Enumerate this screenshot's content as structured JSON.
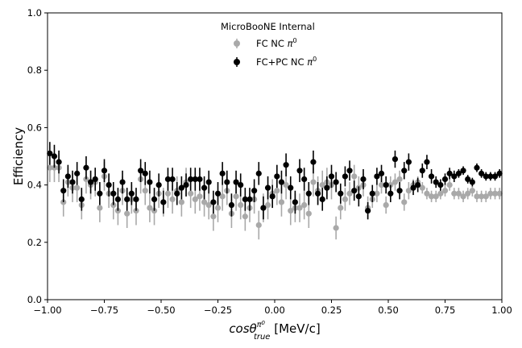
{
  "chart_data": {
    "type": "scatter",
    "title": "",
    "annotation": "MicroBooNE Internal",
    "xlabel": "cosθ^{π0}_{true} [MeV/c]",
    "xlabel_parts": {
      "main": "cosθ",
      "sup": "π",
      "sup2": "0",
      "sub": "true",
      "unit": " [MeV/c]"
    },
    "ylabel": "Efficiency",
    "xlim": [
      -1.0,
      1.0
    ],
    "ylim": [
      0.0,
      1.0
    ],
    "xticks": [
      "−1.00",
      "−0.75",
      "−0.50",
      "−0.25",
      "0.00",
      "0.25",
      "0.50",
      "0.75",
      "1.00"
    ],
    "yticks": [
      "0.0",
      "0.2",
      "0.4",
      "0.6",
      "0.8",
      "1.0"
    ],
    "legend_position": "top-center",
    "grid": false,
    "series": [
      {
        "name": "FC NC π^0",
        "label_main": "FC NC ",
        "label_sym": "π",
        "label_sup": "0",
        "color": "#a9a9a9",
        "x": [
          -0.99,
          -0.97,
          -0.95,
          -0.93,
          -0.91,
          -0.89,
          -0.87,
          -0.85,
          -0.83,
          -0.81,
          -0.79,
          -0.77,
          -0.75,
          -0.73,
          -0.71,
          -0.69,
          -0.67,
          -0.65,
          -0.63,
          -0.61,
          -0.59,
          -0.57,
          -0.55,
          -0.53,
          -0.51,
          -0.49,
          -0.47,
          -0.45,
          -0.43,
          -0.41,
          -0.39,
          -0.37,
          -0.35,
          -0.33,
          -0.31,
          -0.29,
          -0.27,
          -0.25,
          -0.23,
          -0.21,
          -0.19,
          -0.17,
          -0.15,
          -0.13,
          -0.11,
          -0.09,
          -0.07,
          -0.05,
          -0.03,
          -0.01,
          0.01,
          0.03,
          0.05,
          0.07,
          0.09,
          0.11,
          0.13,
          0.15,
          0.17,
          0.19,
          0.21,
          0.23,
          0.25,
          0.27,
          0.29,
          0.31,
          0.33,
          0.35,
          0.37,
          0.39,
          0.41,
          0.43,
          0.45,
          0.47,
          0.49,
          0.51,
          0.53,
          0.55,
          0.57,
          0.59,
          0.61,
          0.63,
          0.65,
          0.67,
          0.69,
          0.71,
          0.73,
          0.75,
          0.77,
          0.79,
          0.81,
          0.83,
          0.85,
          0.87,
          0.89,
          0.91,
          0.93,
          0.95,
          0.97,
          0.99
        ],
        "y": [
          0.46,
          0.46,
          0.46,
          0.34,
          0.41,
          0.39,
          0.39,
          0.33,
          0.42,
          0.4,
          0.41,
          0.32,
          0.43,
          0.37,
          0.33,
          0.31,
          0.38,
          0.3,
          0.35,
          0.31,
          0.42,
          0.38,
          0.32,
          0.31,
          0.37,
          0.34,
          0.37,
          0.35,
          0.38,
          0.34,
          0.41,
          0.37,
          0.35,
          0.36,
          0.34,
          0.33,
          0.29,
          0.32,
          0.36,
          0.38,
          0.3,
          0.36,
          0.33,
          0.29,
          0.32,
          0.35,
          0.26,
          0.32,
          0.33,
          0.37,
          0.38,
          0.34,
          0.4,
          0.31,
          0.32,
          0.32,
          0.33,
          0.3,
          0.41,
          0.38,
          0.4,
          0.41,
          0.4,
          0.25,
          0.32,
          0.35,
          0.37,
          0.43,
          0.39,
          0.4,
          0.32,
          0.35,
          0.37,
          0.4,
          0.33,
          0.4,
          0.41,
          0.42,
          0.34,
          0.38,
          0.4,
          0.41,
          0.39,
          0.37,
          0.36,
          0.36,
          0.37,
          0.38,
          0.4,
          0.37,
          0.37,
          0.36,
          0.37,
          0.38,
          0.36,
          0.36,
          0.36,
          0.37,
          0.37,
          0.37
        ],
        "yerr": [
          0.05,
          0.05,
          0.05,
          0.05,
          0.05,
          0.05,
          0.05,
          0.05,
          0.05,
          0.05,
          0.05,
          0.05,
          0.05,
          0.05,
          0.05,
          0.05,
          0.05,
          0.05,
          0.05,
          0.05,
          0.05,
          0.05,
          0.05,
          0.05,
          0.05,
          0.05,
          0.05,
          0.05,
          0.05,
          0.05,
          0.05,
          0.05,
          0.05,
          0.05,
          0.05,
          0.05,
          0.05,
          0.05,
          0.05,
          0.05,
          0.05,
          0.05,
          0.05,
          0.05,
          0.05,
          0.05,
          0.05,
          0.05,
          0.05,
          0.05,
          0.05,
          0.05,
          0.05,
          0.05,
          0.05,
          0.05,
          0.05,
          0.05,
          0.05,
          0.05,
          0.05,
          0.05,
          0.05,
          0.04,
          0.04,
          0.04,
          0.04,
          0.04,
          0.04,
          0.04,
          0.04,
          0.03,
          0.03,
          0.03,
          0.03,
          0.03,
          0.03,
          0.03,
          0.03,
          0.03,
          0.02,
          0.02,
          0.02,
          0.02,
          0.02,
          0.02,
          0.02,
          0.02,
          0.02,
          0.02,
          0.02,
          0.02,
          0.02,
          0.02,
          0.02,
          0.02,
          0.02,
          0.02,
          0.02,
          0.02
        ]
      },
      {
        "name": "FC+PC NC π^0",
        "label_main": "FC+PC NC ",
        "label_sym": "π",
        "label_sup": "0",
        "color": "#000000",
        "x": [
          -0.99,
          -0.97,
          -0.95,
          -0.93,
          -0.91,
          -0.89,
          -0.87,
          -0.85,
          -0.83,
          -0.81,
          -0.79,
          -0.77,
          -0.75,
          -0.73,
          -0.71,
          -0.69,
          -0.67,
          -0.65,
          -0.63,
          -0.61,
          -0.59,
          -0.57,
          -0.55,
          -0.53,
          -0.51,
          -0.49,
          -0.47,
          -0.45,
          -0.43,
          -0.41,
          -0.39,
          -0.37,
          -0.35,
          -0.33,
          -0.31,
          -0.29,
          -0.27,
          -0.25,
          -0.23,
          -0.21,
          -0.19,
          -0.17,
          -0.15,
          -0.13,
          -0.11,
          -0.09,
          -0.07,
          -0.05,
          -0.03,
          -0.01,
          0.01,
          0.03,
          0.05,
          0.07,
          0.09,
          0.11,
          0.13,
          0.15,
          0.17,
          0.19,
          0.21,
          0.23,
          0.25,
          0.27,
          0.29,
          0.31,
          0.33,
          0.35,
          0.37,
          0.39,
          0.41,
          0.43,
          0.45,
          0.47,
          0.49,
          0.51,
          0.53,
          0.55,
          0.57,
          0.59,
          0.61,
          0.63,
          0.65,
          0.67,
          0.69,
          0.71,
          0.73,
          0.75,
          0.77,
          0.79,
          0.81,
          0.83,
          0.85,
          0.87,
          0.89,
          0.91,
          0.93,
          0.95,
          0.97,
          0.99
        ],
        "y": [
          0.51,
          0.5,
          0.48,
          0.38,
          0.43,
          0.41,
          0.44,
          0.35,
          0.46,
          0.41,
          0.42,
          0.37,
          0.45,
          0.4,
          0.37,
          0.35,
          0.41,
          0.35,
          0.37,
          0.35,
          0.45,
          0.44,
          0.41,
          0.35,
          0.4,
          0.34,
          0.42,
          0.42,
          0.37,
          0.39,
          0.4,
          0.42,
          0.42,
          0.42,
          0.39,
          0.41,
          0.34,
          0.37,
          0.44,
          0.41,
          0.33,
          0.41,
          0.4,
          0.35,
          0.35,
          0.38,
          0.44,
          0.32,
          0.39,
          0.36,
          0.43,
          0.41,
          0.47,
          0.39,
          0.34,
          0.45,
          0.42,
          0.37,
          0.48,
          0.37,
          0.35,
          0.39,
          0.43,
          0.41,
          0.37,
          0.43,
          0.45,
          0.38,
          0.36,
          0.42,
          0.31,
          0.37,
          0.43,
          0.44,
          0.4,
          0.37,
          0.49,
          0.38,
          0.45,
          0.48,
          0.39,
          0.4,
          0.45,
          0.48,
          0.43,
          0.41,
          0.4,
          0.42,
          0.44,
          0.43,
          0.44,
          0.45,
          0.42,
          0.41,
          0.46,
          0.44,
          0.43,
          0.43,
          0.43,
          0.44
        ],
        "yerr": [
          0.04,
          0.04,
          0.04,
          0.04,
          0.04,
          0.04,
          0.04,
          0.04,
          0.04,
          0.04,
          0.04,
          0.04,
          0.04,
          0.04,
          0.04,
          0.04,
          0.04,
          0.04,
          0.04,
          0.04,
          0.04,
          0.04,
          0.04,
          0.04,
          0.04,
          0.04,
          0.04,
          0.04,
          0.04,
          0.04,
          0.04,
          0.04,
          0.04,
          0.04,
          0.04,
          0.04,
          0.04,
          0.04,
          0.04,
          0.04,
          0.04,
          0.04,
          0.04,
          0.04,
          0.04,
          0.04,
          0.04,
          0.04,
          0.04,
          0.04,
          0.04,
          0.04,
          0.04,
          0.04,
          0.04,
          0.04,
          0.04,
          0.04,
          0.04,
          0.04,
          0.04,
          0.04,
          0.04,
          0.035,
          0.035,
          0.035,
          0.035,
          0.035,
          0.035,
          0.035,
          0.03,
          0.03,
          0.03,
          0.03,
          0.03,
          0.03,
          0.03,
          0.03,
          0.03,
          0.03,
          0.025,
          0.025,
          0.025,
          0.025,
          0.025,
          0.02,
          0.02,
          0.02,
          0.02,
          0.02,
          0.015,
          0.015,
          0.015,
          0.015,
          0.015,
          0.015,
          0.015,
          0.015,
          0.015,
          0.015
        ]
      }
    ]
  }
}
